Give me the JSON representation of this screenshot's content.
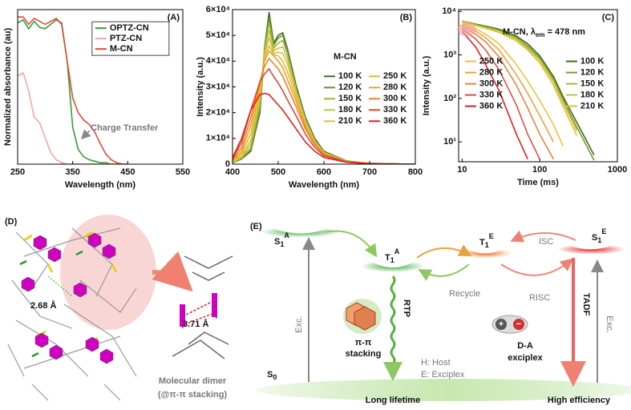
{
  "chart_data": [
    {
      "type": "line",
      "panel_label": "(A)",
      "xlabel": "Wavelength (nm)",
      "ylabel": "Normalized absorbance (au)",
      "annotation": "Charge Transfer",
      "xlim": [
        250,
        550
      ],
      "xticks": [
        250,
        350,
        450,
        550
      ],
      "ylim": [
        0,
        1.05
      ],
      "legend": "upper right",
      "x": [
        250,
        260,
        270,
        280,
        290,
        300,
        310,
        320,
        330,
        340,
        350,
        360,
        370,
        380,
        390,
        400,
        410,
        420,
        430,
        440,
        450
      ],
      "series": [
        {
          "name": "OPTZ-CN",
          "color": "#3a9a3a",
          "values": [
            0.96,
            0.98,
            0.92,
            0.97,
            0.93,
            0.92,
            0.95,
            0.98,
            0.96,
            0.7,
            0.25,
            0.1,
            0.05,
            0.03,
            0.02,
            0.01,
            0.01,
            0,
            0,
            0,
            0
          ]
        },
        {
          "name": "PTZ-CN",
          "color": "#f0a8a0",
          "values": [
            0.6,
            0.62,
            0.5,
            0.32,
            0.28,
            0.18,
            0.08,
            0.03,
            0.01,
            0,
            0,
            0,
            0,
            0,
            0,
            0,
            0,
            0,
            0,
            0,
            0
          ]
        },
        {
          "name": "M-CN",
          "color": "#e04a3a",
          "values": [
            1.0,
            1.0,
            0.95,
            0.99,
            0.97,
            0.95,
            0.97,
            0.99,
            0.95,
            0.7,
            0.45,
            0.35,
            0.3,
            0.27,
            0.22,
            0.14,
            0.07,
            0.03,
            0.01,
            0,
            0
          ]
        }
      ]
    },
    {
      "type": "line",
      "panel_label": "(B)",
      "xlabel": "Wavelength (nm)",
      "ylabel": "Intensity (a.u.)",
      "legend_title": "M-CN",
      "xlim": [
        400,
        800
      ],
      "xticks": [
        400,
        500,
        600,
        700,
        800
      ],
      "ylim": [
        0,
        60000
      ],
      "yticks": [
        0,
        {
          "value": 10000,
          "label": "1×10⁴"
        },
        {
          "value": 20000,
          "label": "2×10⁴"
        },
        {
          "value": 30000,
          "label": "3×10⁴"
        },
        {
          "value": 40000,
          "label": "4×10⁴"
        },
        {
          "value": 50000,
          "label": "5×10⁴"
        },
        {
          "value": 60000,
          "label": "6×10⁴"
        }
      ],
      "legend": "center right",
      "x": [
        400,
        420,
        440,
        460,
        470,
        480,
        490,
        500,
        510,
        520,
        540,
        560,
        580,
        600,
        650,
        700,
        750,
        800
      ],
      "series": [
        {
          "name": "100 K",
          "color": "#3e6b1e",
          "values": [
            500,
            2000,
            5000,
            20000,
            45000,
            59000,
            47000,
            50000,
            51000,
            45000,
            30000,
            18000,
            10000,
            5000,
            1200,
            300,
            100,
            0
          ]
        },
        {
          "name": "120 K",
          "color": "#6f8f2a",
          "values": [
            500,
            2000,
            5500,
            21000,
            44000,
            57000,
            46000,
            49000,
            50000,
            44000,
            29000,
            17500,
            9500,
            4800,
            1100,
            300,
            100,
            0
          ]
        },
        {
          "name": "150 K",
          "color": "#99b33a",
          "values": [
            600,
            2300,
            6500,
            23000,
            44000,
            55000,
            45000,
            47000,
            48000,
            43000,
            28500,
            17000,
            9200,
            4600,
            1100,
            300,
            100,
            0
          ]
        },
        {
          "name": "180 K",
          "color": "#bfc24a",
          "values": [
            700,
            2800,
            8000,
            25000,
            43000,
            52000,
            44000,
            45000,
            45500,
            41000,
            28000,
            16500,
            9000,
            4500,
            1000,
            300,
            100,
            0
          ]
        },
        {
          "name": "210 K",
          "color": "#d8c43e",
          "values": [
            800,
            3200,
            9500,
            27000,
            42000,
            49000,
            43000,
            43500,
            43000,
            39000,
            27000,
            16000,
            8700,
            4300,
            1000,
            300,
            100,
            0
          ]
        },
        {
          "name": "250 K",
          "color": "#e8b830",
          "values": [
            1000,
            4000,
            12000,
            29000,
            41000,
            46000,
            42500,
            42000,
            40000,
            36000,
            25500,
            15000,
            8300,
            4100,
            1000,
            300,
            100,
            0
          ]
        },
        {
          "name": "280 K",
          "color": "#eda02c",
          "values": [
            1200,
            5000,
            15000,
            31000,
            40000,
            44000,
            42000,
            40000,
            37500,
            33000,
            24000,
            14500,
            8000,
            4000,
            1000,
            300,
            100,
            0
          ]
        },
        {
          "name": "300 K",
          "color": "#e8802a",
          "values": [
            1500,
            6500,
            18000,
            32000,
            38000,
            41000,
            39000,
            37000,
            34000,
            30000,
            22000,
            13500,
            7600,
            3800,
            900,
            300,
            100,
            0
          ]
        },
        {
          "name": "330 K",
          "color": "#e0452a",
          "values": [
            2000,
            8500,
            21000,
            32000,
            35000,
            37000,
            34000,
            31500,
            28500,
            25000,
            18500,
            11500,
            6500,
            3300,
            800,
            200,
            100,
            0
          ]
        },
        {
          "name": "360 K",
          "color": "#e02020",
          "values": [
            2500,
            10000,
            21000,
            27000,
            27500,
            27000,
            25000,
            23000,
            21000,
            18500,
            13500,
            8500,
            5000,
            2600,
            700,
            200,
            100,
            0
          ]
        }
      ]
    },
    {
      "type": "line",
      "panel_label": "(C)",
      "xlabel": "Time (ms)",
      "ylabel": "Intensity (a.u.)",
      "annotation_parts": [
        "M-CN, λ",
        "em",
        " = 478 nm"
      ],
      "xlog": true,
      "ylog": true,
      "xlim": [
        9,
        1000
      ],
      "xticks": [
        10,
        100,
        1000
      ],
      "ylim": [
        3.5,
        11000
      ],
      "yticks": [
        {
          "value": 10,
          "label": "10¹"
        },
        {
          "value": 100,
          "label": "10²"
        },
        {
          "value": 1000,
          "label": "10³"
        },
        {
          "value": 10000,
          "label": "10⁴"
        }
      ],
      "legend": "upper center",
      "x": [
        10,
        15,
        20,
        30,
        50,
        70,
        100,
        150,
        200,
        300,
        500,
        700,
        1000
      ],
      "series": [
        {
          "name": "100 K",
          "color": "#3e6b1e",
          "values": [
            6000,
            5100,
            4600,
            3900,
            2700,
            1800,
            950,
            320,
            110,
            28,
            5,
            null,
            null
          ]
        },
        {
          "name": "120 K",
          "color": "#7a9a2a",
          "values": [
            6000,
            5000,
            4400,
            3700,
            2500,
            1600,
            850,
            280,
            95,
            22,
            3.8,
            null,
            null
          ]
        },
        {
          "name": "150 K",
          "color": "#a8b838",
          "values": [
            6000,
            4900,
            4300,
            3600,
            2400,
            1500,
            800,
            260,
            85,
            20,
            null,
            null,
            null
          ]
        },
        {
          "name": "180 K",
          "color": "#c8c040",
          "values": [
            5900,
            4800,
            4200,
            3500,
            2300,
            1400,
            750,
            240,
            80,
            18,
            null,
            null,
            null
          ]
        },
        {
          "name": "210 K",
          "color": "#e0c030",
          "values": [
            5800,
            4700,
            4100,
            3300,
            2100,
            1300,
            650,
            200,
            65,
            14,
            null,
            null,
            null
          ]
        },
        {
          "name": "250 K",
          "color": "#f0c040",
          "values": [
            5500,
            4000,
            3000,
            1800,
            600,
            250,
            90,
            25,
            8,
            null,
            null,
            null,
            null
          ]
        },
        {
          "name": "280 K",
          "color": "#f0a040",
          "values": [
            5000,
            3500,
            2500,
            1300,
            350,
            130,
            40,
            10,
            null,
            null,
            null,
            null,
            null
          ]
        },
        {
          "name": "300 K",
          "color": "#e88040",
          "values": [
            4500,
            3000,
            2000,
            900,
            200,
            60,
            15,
            4,
            null,
            null,
            null,
            null,
            null
          ]
        },
        {
          "name": "330 K",
          "color": "#e05040",
          "values": [
            4000,
            2300,
            1300,
            450,
            70,
            15,
            4,
            null,
            null,
            null,
            null,
            null,
            null
          ]
        },
        {
          "name": "360 K",
          "color": "#e02020",
          "values": [
            3500,
            1500,
            600,
            150,
            15,
            4,
            null,
            null,
            null,
            null,
            null,
            null,
            null
          ]
        }
      ]
    }
  ],
  "panel_d": {
    "label": "(D)",
    "distance_1": "2.68 Å",
    "distance_2": "3.71 Å",
    "caption": [
      "Molecular dimer",
      "(@π-π stacking)"
    ]
  },
  "panel_e": {
    "label": "(E)",
    "states": [
      {
        "base": "S",
        "sub": "1",
        "sup": "A"
      },
      {
        "base": "T",
        "sub": "1",
        "sup": "A"
      },
      {
        "base": "T",
        "sub": "1",
        "sup": "E"
      },
      {
        "base": "S",
        "sub": "1",
        "sup": "E"
      },
      {
        "base": "S",
        "sub": "0"
      }
    ],
    "excitation": [
      "Exc.",
      "Exc."
    ],
    "rtp": "RTP",
    "stacking": [
      "π-π",
      "stacking"
    ],
    "legend": [
      "H: Host",
      "E: Exciplex"
    ],
    "exciplex": [
      "D-A",
      "exciplex"
    ],
    "charges": [
      "+",
      "−"
    ],
    "isc": "ISC",
    "risc": "RISC",
    "recycle": "Recycle",
    "tadf": "TADF",
    "long_lifetime": "Long lifetime",
    "high_efficiency": "High efficiency"
  }
}
